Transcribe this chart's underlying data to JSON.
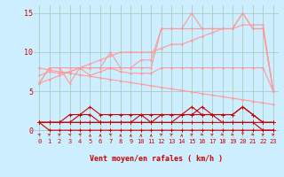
{
  "x": [
    0,
    1,
    2,
    3,
    4,
    5,
    6,
    7,
    8,
    9,
    10,
    11,
    12,
    13,
    14,
    15,
    16,
    17,
    18,
    19,
    20,
    21,
    22,
    23
  ],
  "light_lines": [
    [
      6,
      8,
      8,
      6,
      8,
      8,
      8,
      10,
      8,
      8,
      8,
      8,
      13,
      13,
      13,
      15,
      13,
      13,
      13,
      13,
      15,
      13,
      13,
      5
    ],
    [
      6,
      8,
      8,
      8,
      8,
      8,
      8,
      8,
      8,
      8,
      9,
      9,
      13,
      13,
      13,
      13,
      13,
      13,
      13,
      13,
      15,
      13,
      13,
      5
    ],
    [
      7,
      7.5,
      7.3,
      7.5,
      8,
      7,
      7.5,
      8,
      7.5,
      7.3,
      7.3,
      7.3,
      8,
      8,
      8,
      8,
      8,
      8,
      8,
      8,
      8,
      8,
      8,
      5
    ],
    [
      8,
      7.7,
      7.5,
      7.3,
      7.1,
      6.9,
      6.7,
      6.5,
      6.3,
      6.1,
      5.9,
      5.7,
      5.5,
      5.3,
      5.1,
      4.9,
      4.7,
      4.5,
      4.3,
      4.1,
      3.9,
      3.7,
      3.5,
      3.3
    ],
    [
      6,
      6.5,
      7.0,
      7.5,
      8.0,
      8.5,
      9.0,
      9.5,
      10.0,
      10.0,
      10.0,
      10.0,
      10.5,
      11.0,
      11.0,
      11.5,
      12.0,
      12.5,
      13.0,
      13.0,
      13.5,
      13.5,
      13.5,
      5
    ]
  ],
  "dark_lines": [
    [
      1,
      1,
      1,
      2,
      2,
      3,
      2,
      2,
      2,
      2,
      2,
      2,
      2,
      2,
      2,
      2,
      3,
      2,
      2,
      2,
      3,
      2,
      1,
      1
    ],
    [
      1,
      1,
      1,
      1,
      2,
      2,
      1,
      1,
      1,
      1,
      2,
      1,
      1,
      1,
      2,
      2,
      2,
      2,
      1,
      1,
      1,
      1,
      1,
      1
    ],
    [
      1,
      1,
      1,
      1,
      1,
      1,
      1,
      1,
      1,
      1,
      1,
      1,
      2,
      2,
      2,
      3,
      2,
      2,
      2,
      2,
      3,
      2,
      1,
      1
    ],
    [
      1,
      0,
      0,
      0,
      0,
      0,
      0,
      0,
      0,
      0,
      0,
      0,
      0,
      0,
      0,
      0,
      0,
      0,
      0,
      0,
      0,
      0,
      0,
      0
    ],
    [
      1,
      1,
      1,
      1,
      1,
      1,
      1,
      1,
      1,
      1,
      1,
      1,
      1,
      1,
      1,
      1,
      1,
      1,
      1,
      1,
      1,
      1,
      0,
      0
    ]
  ],
  "arrow_angles": [
    135,
    45,
    45,
    135,
    135,
    90,
    90,
    135,
    90,
    90,
    90,
    90,
    45,
    45,
    90,
    45,
    315,
    45,
    315,
    315,
    270,
    315,
    45,
    45
  ],
  "background_color": "#cceeff",
  "grid_color": "#aaccbb",
  "line_color_light": "#ff9999",
  "line_color_dark": "#cc0000",
  "xlabel": "Vent moyen/en rafales ( km/h )",
  "xlim": [
    -0.5,
    23.5
  ],
  "ylim": [
    -1.0,
    16
  ],
  "yticks": [
    0,
    5,
    10,
    15
  ],
  "xticks": [
    0,
    1,
    2,
    3,
    4,
    5,
    6,
    7,
    8,
    9,
    10,
    11,
    12,
    13,
    14,
    15,
    16,
    17,
    18,
    19,
    20,
    21,
    22,
    23
  ]
}
